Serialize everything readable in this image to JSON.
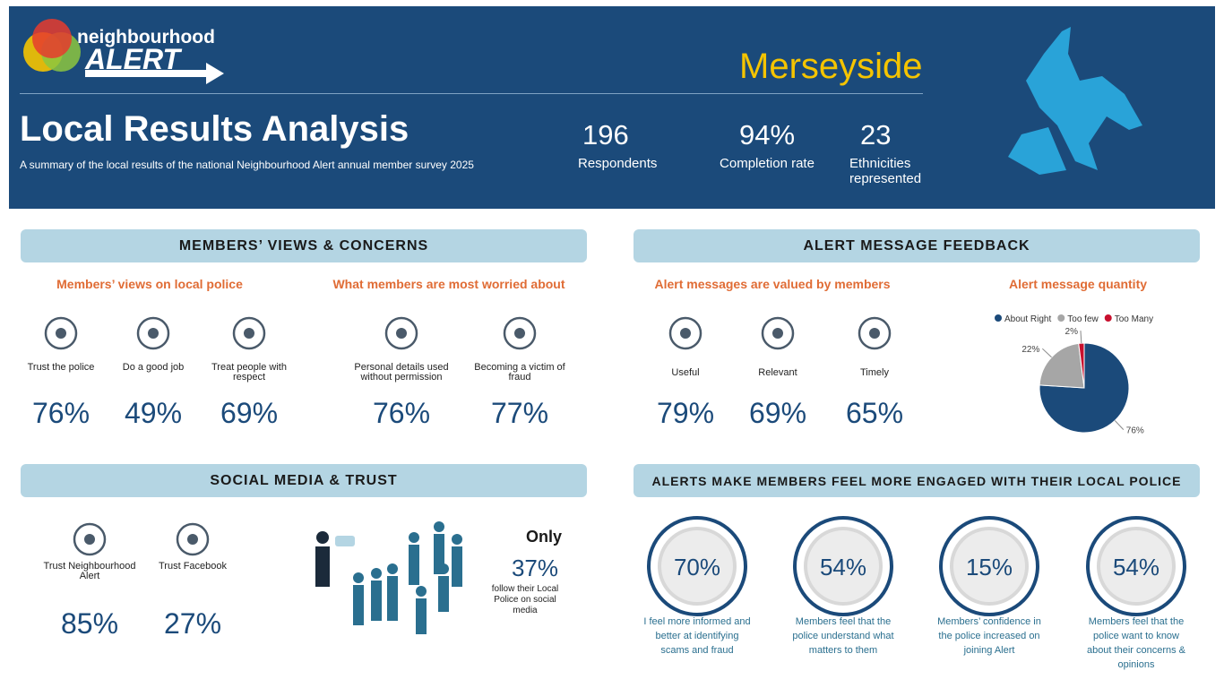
{
  "header": {
    "logo_top": "neighbourhood",
    "logo_bottom": "ALERT",
    "title": "Local Results Analysis",
    "subtitle": "A summary of the local results of the national Neighbourhood Alert annual member survey 2025",
    "region": "Merseyside",
    "stats": [
      {
        "value": "196",
        "label": "Respondents"
      },
      {
        "value": "94%",
        "label": "Completion rate"
      },
      {
        "value": "23",
        "label": "Ethnicities represented"
      }
    ]
  },
  "views": {
    "heading": "MEMBERS’ VIEWS & CONCERNS",
    "police_title": "Members’ views on local police",
    "police": [
      {
        "label": "Trust the police",
        "value": "76%"
      },
      {
        "label": "Do a good job",
        "value": "49%"
      },
      {
        "label": "Treat people with respect",
        "value": "69%"
      }
    ],
    "worry_title": "What members are most worried about",
    "worries": [
      {
        "label": "Personal details used without permission",
        "value": "76%"
      },
      {
        "label": "Becoming a victim of fraud",
        "value": "77%"
      }
    ]
  },
  "feedback": {
    "heading": "ALERT MESSAGE FEEDBACK",
    "valued_title": "Alert messages are valued by members",
    "valued": [
      {
        "label": "Useful",
        "value": "79%"
      },
      {
        "label": "Relevant",
        "value": "69%"
      },
      {
        "label": "Timely",
        "value": "65%"
      }
    ],
    "chart_data": {
      "type": "pie",
      "title": "Alert message quantity",
      "categories": [
        "About Right",
        "Too few",
        "Too Many"
      ],
      "values": [
        76,
        22,
        2
      ],
      "value_labels": [
        "76%",
        "22%",
        "2%"
      ],
      "colors": [
        "#1b4a7a",
        "#a6a6a6",
        "#c8102e"
      ]
    }
  },
  "social": {
    "heading": "SOCIAL MEDIA & TRUST",
    "items": [
      {
        "label": "Trust Neighbourhood Alert",
        "value": "85%"
      },
      {
        "label": "Trust Facebook",
        "value": "27%"
      }
    ],
    "only": "Only",
    "follow_value": "37%",
    "follow_label": "follow their Local Police on social media"
  },
  "engaged": {
    "heading": "ALERTS MAKE MEMBERS FEEL MORE ENGAGED WITH THEIR LOCAL POLICE",
    "items": [
      {
        "value": "70%",
        "label": "I feel more informed and better at identifying scams and fraud"
      },
      {
        "value": "54%",
        "label": "Members feel that the police understand what matters to them"
      },
      {
        "value": "15%",
        "label": "Members’ confidence in the police increased on joining Alert"
      },
      {
        "value": "54%",
        "label": "Members feel that the police want to know about their concerns & opinions"
      }
    ]
  }
}
